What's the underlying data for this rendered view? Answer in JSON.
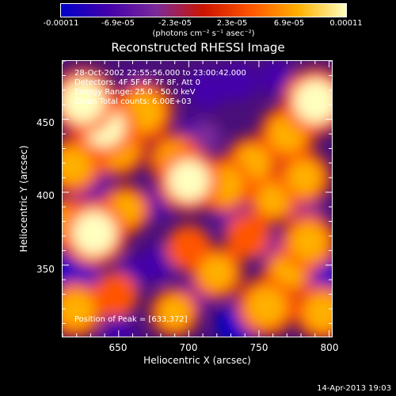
{
  "chart_data": {
    "type": "heatmap",
    "title": "Reconstructed RHESSI Image",
    "xlabel": "Heliocentric X (arcsec)",
    "ylabel": "Heliocentric Y (arcsec)",
    "xlim": [
      610,
      802
    ],
    "ylim": [
      301,
      490
    ],
    "x_ticks": [
      650,
      700,
      750,
      800
    ],
    "y_ticks": [
      350,
      400,
      450
    ],
    "colorbar": {
      "units": "(photons cm⁻² s⁻¹ asec⁻²)",
      "tick_values": [
        "-0.00011",
        "-6.9e-05",
        "-2.3e-05",
        "2.3e-05",
        "6.9e-05",
        "0.00011"
      ],
      "range": [
        -0.00011,
        0.00011
      ],
      "colors": [
        "#0000c8",
        "#4400aa",
        "#7a2a9a",
        "#cc1400",
        "#ff5500",
        "#ffb000",
        "#ffffc0"
      ]
    },
    "annotations": [
      "28-Oct-2002 22:55:56.000 to 23:00:42.000",
      "Detectors: 4F 5F 6F 7F 8F, Att 0",
      "Energy Range: 25.0 - 50.0 keV",
      "Clean    Total counts: 6.00E+03"
    ],
    "peak_label": "Position of Peak = [633,372]",
    "blobs": [
      {
        "x": 625,
        "y": 462,
        "v": 0.00011
      },
      {
        "x": 640,
        "y": 445,
        "v": 0.0001
      },
      {
        "x": 668,
        "y": 455,
        "v": 9e-05
      },
      {
        "x": 650,
        "y": 430,
        "v": 8e-05
      },
      {
        "x": 618,
        "y": 418,
        "v": 8e-05
      },
      {
        "x": 690,
        "y": 422,
        "v": 7e-05
      },
      {
        "x": 700,
        "y": 408,
        "v": 0.0001
      },
      {
        "x": 725,
        "y": 405,
        "v": 8e-05
      },
      {
        "x": 745,
        "y": 420,
        "v": 7e-05
      },
      {
        "x": 770,
        "y": 440,
        "v": 8e-05
      },
      {
        "x": 790,
        "y": 462,
        "v": 0.00011
      },
      {
        "x": 760,
        "y": 395,
        "v": 6e-05
      },
      {
        "x": 782,
        "y": 410,
        "v": 7e-05
      },
      {
        "x": 633,
        "y": 372,
        "v": 0.00011
      },
      {
        "x": 615,
        "y": 378,
        "v": 7e-05
      },
      {
        "x": 655,
        "y": 388,
        "v": 6e-05
      },
      {
        "x": 700,
        "y": 362,
        "v": 5e-05
      },
      {
        "x": 720,
        "y": 345,
        "v": 7e-05
      },
      {
        "x": 742,
        "y": 370,
        "v": 5e-05
      },
      {
        "x": 785,
        "y": 366,
        "v": 8e-05
      },
      {
        "x": 770,
        "y": 345,
        "v": 6e-05
      },
      {
        "x": 620,
        "y": 320,
        "v": 8e-05
      },
      {
        "x": 648,
        "y": 330,
        "v": 5e-05
      },
      {
        "x": 690,
        "y": 318,
        "v": 6e-05
      },
      {
        "x": 755,
        "y": 322,
        "v": 9e-05
      },
      {
        "x": 795,
        "y": 318,
        "v": 8e-05
      },
      {
        "x": 665,
        "y": 470,
        "v": -6e-05
      },
      {
        "x": 713,
        "y": 470,
        "v": -9e-05
      },
      {
        "x": 735,
        "y": 475,
        "v": -8e-05
      },
      {
        "x": 762,
        "y": 478,
        "v": -7e-05
      },
      {
        "x": 705,
        "y": 440,
        "v": -6e-05
      },
      {
        "x": 630,
        "y": 405,
        "v": -8e-05
      },
      {
        "x": 675,
        "y": 392,
        "v": -6e-05
      },
      {
        "x": 730,
        "y": 385,
        "v": -7e-05
      },
      {
        "x": 712,
        "y": 438,
        "v": -5e-05
      },
      {
        "x": 620,
        "y": 345,
        "v": -0.00011
      },
      {
        "x": 680,
        "y": 352,
        "v": -8e-05
      },
      {
        "x": 705,
        "y": 330,
        "v": -7e-05
      },
      {
        "x": 735,
        "y": 310,
        "v": -0.0001
      },
      {
        "x": 760,
        "y": 360,
        "v": -6e-05
      },
      {
        "x": 800,
        "y": 340,
        "v": -0.0001
      },
      {
        "x": 660,
        "y": 345,
        "v": -6e-05
      },
      {
        "x": 650,
        "y": 305,
        "v": -6e-05
      },
      {
        "x": 785,
        "y": 385,
        "v": -5e-05
      }
    ]
  },
  "timestamp": "14-Apr-2013 19:03"
}
